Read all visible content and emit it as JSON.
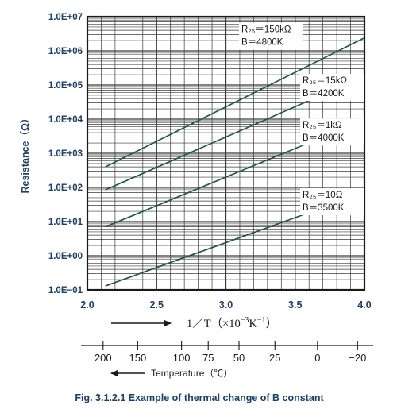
{
  "chart_data": {
    "type": "line",
    "caption": "Fig. 3.1.2.1  Example of thermal change of B constant",
    "ylabel": "Resistance（Ω）",
    "xlabel": {
      "main": "1／T（×10",
      "exp": "−3",
      "mid": "K",
      "exp2": "−1",
      "end": "）"
    },
    "yscale": "log",
    "ylim": [
      0.1,
      10000000
    ],
    "xlim": [
      2.0,
      4.0
    ],
    "grid": true,
    "y_tick_labels": [
      "1.0E+07",
      "1.0E+06",
      "1.0E+05",
      "1.0E+04",
      "1.0E+03",
      "1.0E+02",
      "1.0E+01",
      "1.0E+00",
      "1.0E−01"
    ],
    "y_tick_values": [
      10000000,
      1000000,
      100000,
      10000,
      1000,
      100,
      10,
      1,
      0.1
    ],
    "x_tick_labels": [
      "2.0",
      "2.5",
      "3.0",
      "3.5",
      "4.0"
    ],
    "x_tick_values": [
      2.0,
      2.5,
      3.0,
      3.5,
      4.0
    ],
    "series": [
      {
        "label_line1": "R₂₅＝150kΩ",
        "label_line2": "B＝4800K",
        "x": [
          2.13,
          4.0
        ],
        "y": [
          400,
          2400000
        ]
      },
      {
        "label_line1": "R₂₅＝15kΩ",
        "label_line2": "B＝4200K",
        "x": [
          2.13,
          4.0
        ],
        "y": [
          85,
          180000
        ]
      },
      {
        "label_line1": "R₂₅＝1kΩ",
        "label_line2": "B＝4000K",
        "x": [
          2.13,
          4.0
        ],
        "y": [
          7,
          9500
        ]
      },
      {
        "label_line1": "R₂₅＝10Ω",
        "label_line2": "B＝3500K",
        "x": [
          2.13,
          4.0
        ],
        "y": [
          0.13,
          70
        ]
      }
    ],
    "temperature_axis": {
      "label": "Temperature（℃）",
      "ticks": [
        {
          "label": "200",
          "value": 200
        },
        {
          "label": "150",
          "value": 150
        },
        {
          "label": "100",
          "value": 100
        },
        {
          "label": "75",
          "value": 75
        },
        {
          "label": "50",
          "value": 50
        },
        {
          "label": "25",
          "value": 25
        },
        {
          "label": "0",
          "value": 0
        },
        {
          "label": "−20",
          "value": -20
        }
      ]
    }
  }
}
